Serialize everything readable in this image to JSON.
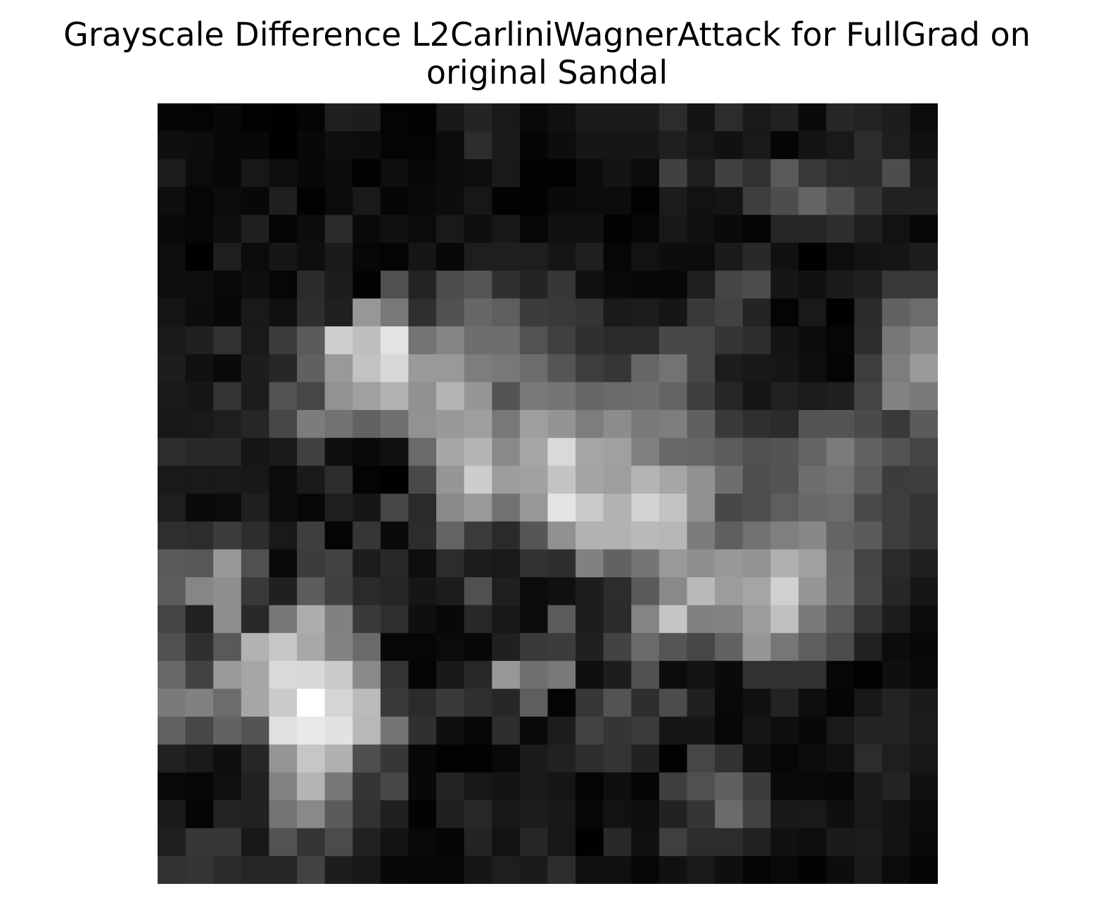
{
  "title_lines": [
    "Grayscale Difference L2CarliniWagnerAttack for FullGrad on",
    "original Sandal"
  ],
  "chart_data": {
    "type": "heatmap",
    "title": "Grayscale Difference L2CarliniWagnerAttack for FullGrad on original Sandal",
    "colormap": "gray",
    "axes_visible": false,
    "rows": 28,
    "cols": 28,
    "values": [
      [
        5,
        4,
        8,
        2,
        1,
        5,
        31,
        29,
        4,
        2,
        24,
        36,
        25,
        9,
        16,
        27,
        27,
        27,
        44,
        20,
        44,
        25,
        33,
        10,
        39,
        35,
        29,
        12
      ],
      [
        15,
        13,
        8,
        8,
        1,
        8,
        15,
        13,
        4,
        4,
        12,
        45,
        27,
        5,
        13,
        22,
        22,
        22,
        31,
        23,
        17,
        25,
        5,
        20,
        25,
        45,
        30,
        17
      ],
      [
        28,
        11,
        8,
        23,
        14,
        8,
        11,
        3,
        14,
        8,
        13,
        15,
        25,
        2,
        2,
        11,
        20,
        11,
        65,
        30,
        65,
        50,
        90,
        56,
        44,
        43,
        77,
        29
      ],
      [
        14,
        6,
        12,
        8,
        31,
        2,
        11,
        25,
        5,
        10,
        13,
        23,
        3,
        3,
        10,
        12,
        12,
        2,
        28,
        18,
        21,
        62,
        77,
        100,
        78,
        53,
        34,
        34
      ],
      [
        9,
        6,
        14,
        31,
        4,
        12,
        42,
        10,
        17,
        11,
        25,
        15,
        23,
        7,
        17,
        17,
        2,
        7,
        24,
        16,
        10,
        4,
        38,
        38,
        46,
        31,
        18,
        6
      ],
      [
        14,
        1,
        30,
        11,
        22,
        14,
        27,
        7,
        4,
        22,
        8,
        30,
        30,
        30,
        21,
        31,
        6,
        18,
        13,
        12,
        27,
        41,
        17,
        1,
        14,
        20,
        21,
        29
      ],
      [
        14,
        15,
        9,
        14,
        6,
        43,
        28,
        3,
        80,
        35,
        76,
        85,
        48,
        36,
        55,
        16,
        10,
        7,
        7,
        30,
        69,
        77,
        22,
        17,
        27,
        32,
        56,
        56
      ],
      [
        21,
        13,
        8,
        25,
        16,
        45,
        31,
        151,
        120,
        47,
        81,
        103,
        94,
        60,
        57,
        52,
        26,
        28,
        22,
        57,
        66,
        36,
        4,
        25,
        1,
        43,
        98,
        108
      ],
      [
        26,
        32,
        50,
        25,
        60,
        90,
        206,
        190,
        227,
        115,
        133,
        110,
        110,
        82,
        64,
        48,
        42,
        43,
        72,
        70,
        52,
        46,
        20,
        12,
        6,
        46,
        119,
        136
      ],
      [
        29,
        17,
        10,
        29,
        39,
        96,
        153,
        194,
        216,
        153,
        153,
        125,
        120,
        108,
        85,
        62,
        54,
        102,
        115,
        71,
        28,
        24,
        22,
        14,
        4,
        61,
        125,
        154
      ],
      [
        25,
        22,
        51,
        28,
        82,
        70,
        146,
        160,
        177,
        145,
        180,
        150,
        84,
        121,
        117,
        103,
        107,
        110,
        100,
        62,
        38,
        21,
        33,
        28,
        31,
        68,
        131,
        122
      ],
      [
        24,
        25,
        30,
        38,
        71,
        124,
        114,
        98,
        111,
        146,
        152,
        158,
        120,
        158,
        148,
        125,
        140,
        122,
        126,
        96,
        58,
        47,
        43,
        84,
        84,
        74,
        57,
        91
      ],
      [
        44,
        40,
        41,
        22,
        27,
        64,
        14,
        10,
        16,
        106,
        166,
        181,
        138,
        166,
        217,
        165,
        160,
        128,
        104,
        101,
        92,
        80,
        84,
        100,
        123,
        98,
        83,
        68
      ],
      [
        25,
        25,
        25,
        24,
        11,
        26,
        45,
        4,
        1,
        73,
        150,
        205,
        157,
        161,
        195,
        164,
        158,
        181,
        166,
        145,
        110,
        78,
        84,
        110,
        115,
        92,
        60,
        62
      ],
      [
        30,
        10,
        11,
        31,
        12,
        6,
        30,
        22,
        70,
        42,
        137,
        154,
        113,
        152,
        228,
        202,
        178,
        211,
        194,
        144,
        72,
        78,
        94,
        105,
        108,
        74,
        62,
        51
      ],
      [
        47,
        44,
        60,
        45,
        25,
        62,
        4,
        54,
        10,
        44,
        100,
        59,
        42,
        86,
        145,
        178,
        178,
        185,
        182,
        124,
        95,
        114,
        127,
        136,
        100,
        91,
        61,
        52
      ],
      [
        89,
        87,
        152,
        80,
        10,
        60,
        66,
        28,
        41,
        14,
        44,
        29,
        25,
        50,
        45,
        129,
        98,
        117,
        153,
        142,
        152,
        147,
        175,
        160,
        107,
        69,
        43,
        32
      ],
      [
        92,
        134,
        142,
        57,
        32,
        92,
        64,
        42,
        37,
        22,
        28,
        80,
        31,
        11,
        16,
        29,
        44,
        90,
        137,
        185,
        156,
        165,
        208,
        150,
        110,
        72,
        39,
        22
      ],
      [
        68,
        33,
        143,
        41,
        119,
        173,
        129,
        58,
        47,
        15,
        8,
        40,
        24,
        12,
        92,
        29,
        43,
        132,
        197,
        129,
        130,
        157,
        192,
        121,
        89,
        52,
        29,
        13
      ],
      [
        81,
        48,
        89,
        178,
        200,
        168,
        131,
        106,
        7,
        6,
        11,
        7,
        32,
        58,
        60,
        32,
        67,
        106,
        85,
        70,
        98,
        150,
        118,
        94,
        75,
        33,
        12,
        8
      ],
      [
        105,
        66,
        154,
        166,
        217,
        216,
        202,
        138,
        52,
        4,
        24,
        40,
        151,
        112,
        121,
        15,
        29,
        81,
        12,
        20,
        10,
        49,
        49,
        49,
        6,
        2,
        15,
        10
      ],
      [
        122,
        129,
        108,
        166,
        202,
        255,
        213,
        187,
        57,
        43,
        58,
        47,
        39,
        94,
        4,
        55,
        84,
        46,
        76,
        32,
        9,
        16,
        35,
        14,
        5,
        24,
        35,
        27
      ],
      [
        97,
        71,
        98,
        84,
        224,
        232,
        226,
        184,
        117,
        48,
        15,
        8,
        46,
        9,
        28,
        66,
        53,
        59,
        22,
        22,
        7,
        22,
        15,
        8,
        25,
        36,
        36,
        28
      ],
      [
        33,
        26,
        15,
        38,
        149,
        198,
        176,
        78,
        55,
        8,
        2,
        2,
        9,
        27,
        33,
        45,
        52,
        34,
        2,
        70,
        50,
        14,
        7,
        12,
        16,
        44,
        30,
        23
      ],
      [
        9,
        6,
        16,
        34,
        131,
        180,
        119,
        53,
        71,
        8,
        35,
        24,
        20,
        26,
        21,
        4,
        15,
        5,
        62,
        80,
        95,
        60,
        10,
        9,
        7,
        27,
        36,
        17
      ],
      [
        26,
        5,
        35,
        34,
        115,
        137,
        91,
        49,
        31,
        3,
        31,
        40,
        24,
        29,
        24,
        7,
        18,
        14,
        34,
        53,
        107,
        67,
        24,
        25,
        15,
        25,
        19,
        12
      ],
      [
        30,
        55,
        55,
        24,
        82,
        53,
        75,
        33,
        20,
        9,
        5,
        35,
        18,
        39,
        23,
        1,
        41,
        16,
        63,
        44,
        44,
        33,
        17,
        14,
        27,
        28,
        20,
        10
      ],
      [
        50,
        53,
        43,
        37,
        37,
        66,
        29,
        24,
        8,
        6,
        7,
        22,
        30,
        27,
        45,
        16,
        16,
        6,
        17,
        25,
        15,
        4,
        9,
        3,
        13,
        26,
        11,
        4
      ]
    ]
  }
}
